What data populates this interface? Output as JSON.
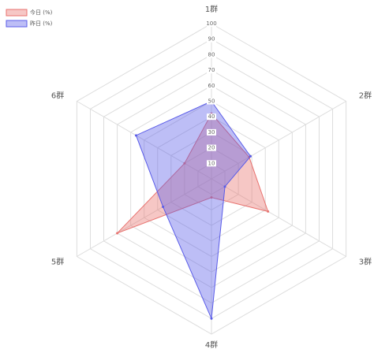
{
  "chart_data": {
    "type": "radar",
    "categories": [
      "1群",
      "2群",
      "3群",
      "4群",
      "5群",
      "6群"
    ],
    "series": [
      {
        "name": "今日 (%)",
        "color": "#e8726f",
        "values": [
          42,
          28,
          42,
          12,
          70,
          20
        ]
      },
      {
        "name": "昨日 (%)",
        "color": "#5a5ce8",
        "values": [
          50,
          29,
          10,
          90,
          36,
          56
        ]
      }
    ],
    "ylim": [
      0,
      100
    ],
    "yticks": [
      10,
      20,
      30,
      40,
      50,
      60,
      70,
      80,
      90,
      100
    ],
    "grid": true,
    "legend": "top-left"
  }
}
